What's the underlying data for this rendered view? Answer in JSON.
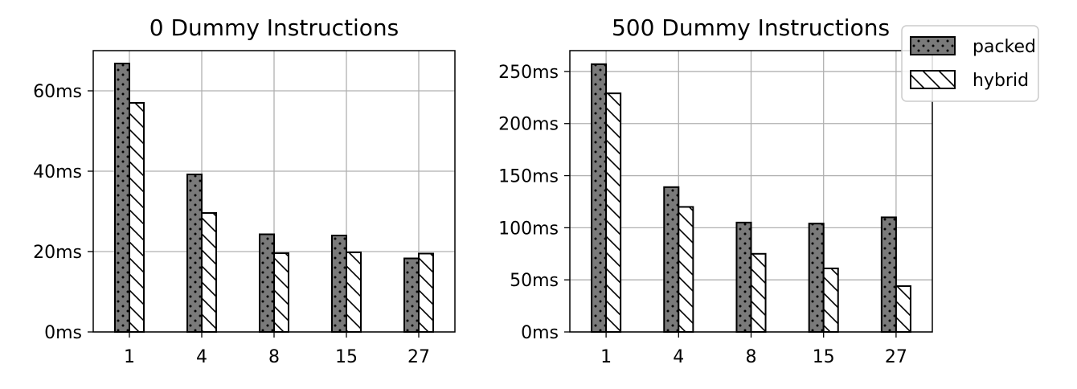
{
  "chart_data": [
    {
      "type": "bar",
      "title": "0 Dummy Instructions",
      "categories": [
        "1",
        "4",
        "8",
        "15",
        "27"
      ],
      "series": [
        {
          "name": "packed",
          "values": [
            66.8,
            39.2,
            24.3,
            24.0,
            18.3
          ]
        },
        {
          "name": "hybrid",
          "values": [
            57.0,
            29.6,
            19.6,
            19.8,
            19.5
          ]
        }
      ],
      "ylim": [
        0,
        70
      ],
      "yticks": [
        0,
        20,
        40,
        60
      ],
      "ytick_labels": [
        "0ms",
        "20ms",
        "40ms",
        "60ms"
      ],
      "xlabel": "",
      "ylabel": "",
      "grid": true
    },
    {
      "type": "bar",
      "title": "500 Dummy Instructions",
      "categories": [
        "1",
        "4",
        "8",
        "15",
        "27"
      ],
      "series": [
        {
          "name": "packed",
          "values": [
            257,
            139,
            105,
            104,
            110
          ]
        },
        {
          "name": "hybrid",
          "values": [
            229,
            120,
            75,
            61,
            44
          ]
        }
      ],
      "ylim": [
        0,
        270
      ],
      "yticks": [
        0,
        50,
        100,
        150,
        200,
        250
      ],
      "ytick_labels": [
        "0ms",
        "50ms",
        "100ms",
        "150ms",
        "200ms",
        "250ms"
      ],
      "xlabel": "",
      "ylabel": "",
      "grid": true
    }
  ],
  "legend": {
    "placement": "top-right",
    "items": [
      {
        "label": "packed",
        "pattern": "dots",
        "color": "#7a7a7a"
      },
      {
        "label": "hybrid",
        "pattern": "diagonal-hatch",
        "color": "#ffffff"
      }
    ]
  },
  "colors": {
    "packed_fill": "#7a7a7a",
    "hybrid_fill": "#ffffff",
    "grid": "#b0b0b0",
    "edge": "#000000"
  }
}
